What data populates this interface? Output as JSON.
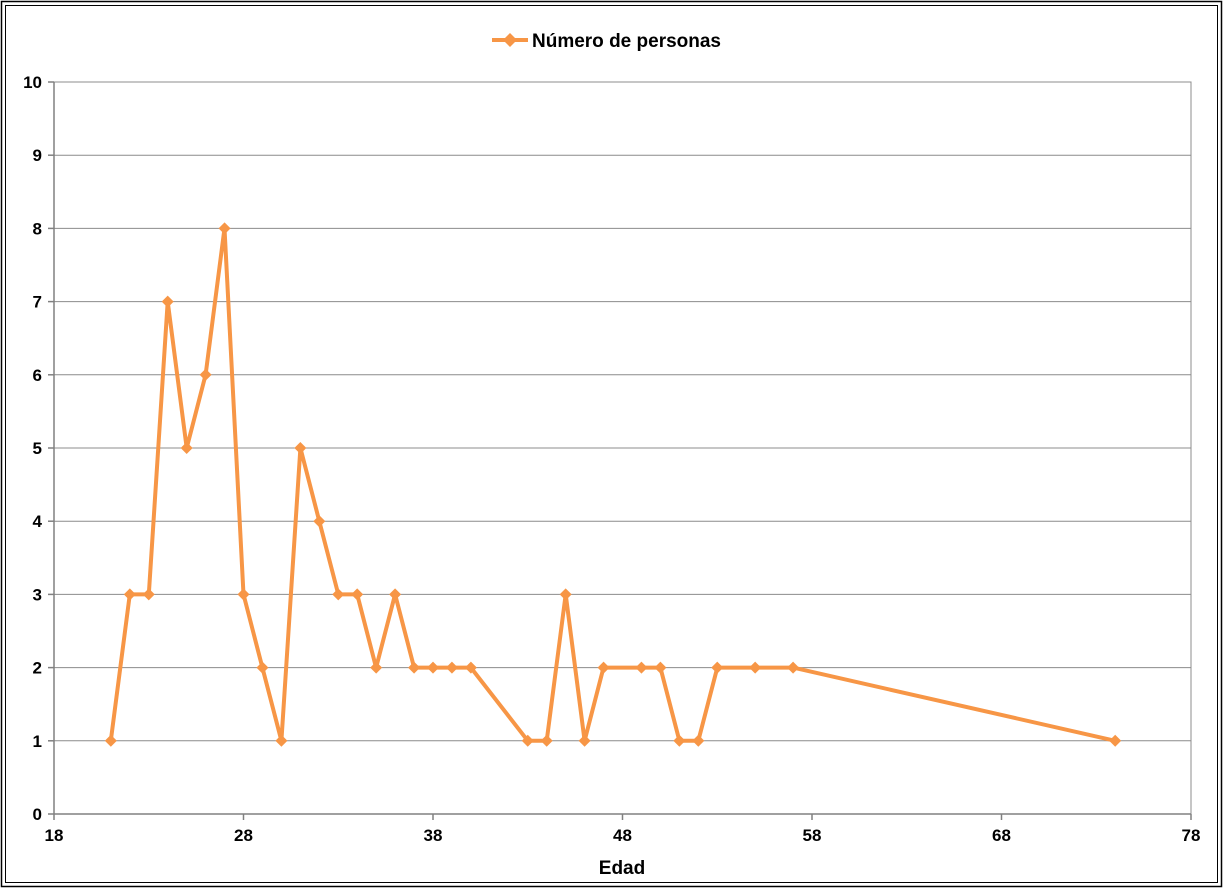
{
  "chart_data": {
    "type": "line",
    "title": "",
    "xlabel": "Edad",
    "ylabel": "",
    "xlim": [
      18,
      78
    ],
    "ylim": [
      0,
      10
    ],
    "x_ticks": [
      18,
      28,
      38,
      48,
      58,
      68,
      78
    ],
    "y_ticks": [
      0,
      1,
      2,
      3,
      4,
      5,
      6,
      7,
      8,
      9,
      10
    ],
    "grid": "horizontal",
    "legend_position": "top-center",
    "series": [
      {
        "name": "Número de personas",
        "color": "#F79646",
        "marker": "diamond",
        "x": [
          21,
          22,
          23,
          24,
          25,
          26,
          27,
          28,
          29,
          30,
          31,
          32,
          33,
          34,
          35,
          36,
          37,
          38,
          39,
          40,
          43,
          44,
          45,
          46,
          47,
          49,
          50,
          51,
          52,
          53,
          55,
          57,
          74
        ],
        "y": [
          1,
          3,
          3,
          7,
          5,
          6,
          8,
          3,
          2,
          1,
          5,
          4,
          3,
          3,
          2,
          3,
          2,
          2,
          2,
          2,
          1,
          1,
          3,
          1,
          2,
          2,
          2,
          1,
          1,
          2,
          2,
          2,
          1
        ]
      }
    ]
  }
}
